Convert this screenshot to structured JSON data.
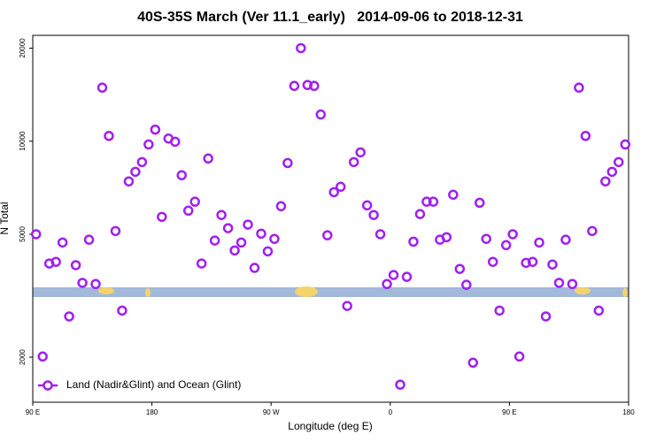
{
  "chart_data": {
    "type": "scatter",
    "title": "40S-35S March (Ver 11.1_early)   2014-09-06 to 2018-12-31",
    "x_label": "Longitude (deg E)",
    "y_label": "N Total",
    "log_y": true,
    "grid": false,
    "legend": "lower left",
    "xlim": [
      90,
      540
    ],
    "xticks": [
      {
        "value": 90,
        "label": "90 E"
      },
      180,
      {
        "value": 270,
        "label": "90 W"
      },
      {
        "value": 360,
        "label": "0"
      },
      {
        "value": 450,
        "label": "90 E"
      },
      {
        "value": 540,
        "label": "180"
      }
    ],
    "ylim": [
      1430,
      22000
    ],
    "yticks": [
      2000,
      5000,
      10000,
      20000
    ],
    "series": [
      {
        "name": "Land (Nadir&Glint) and Ocean (Glint)",
        "color": "#a020f0",
        "x": [
          92.5,
          97.5,
          102.5,
          107.5,
          112.5,
          117.5,
          122.5,
          127.5,
          132.5,
          137.5,
          142.5,
          147.5,
          152.5,
          157.5,
          162.5,
          167.5,
          172.5,
          177.5,
          182.5,
          187.5,
          192.5,
          197.5,
          202.5,
          207.5,
          212.5,
          217.5,
          222.5,
          227.5,
          232.5,
          237.5,
          242.5,
          247.5,
          252.5,
          257.5,
          262.5,
          267.5,
          272.5,
          277.5,
          282.5,
          287.5,
          292.5,
          297.5,
          302.5,
          307.5,
          312.5,
          317.5,
          322.5,
          327.5,
          332.5,
          337.5,
          342.5,
          347.5,
          352.5,
          357.5,
          362.5,
          367.5,
          372.5,
          377.5,
          382.5,
          387.5,
          392.5,
          397.5,
          402.5,
          407.5,
          412.5,
          417.5,
          422.5,
          427.5,
          432.5,
          437.5,
          442.5,
          447.5,
          452.5,
          457.5,
          462.5,
          467.5,
          472.5,
          477.5,
          482.5,
          487.5,
          492.5,
          497.5,
          502.5,
          507.5,
          512.5,
          517.5,
          522.5,
          527.5,
          532.5,
          537.5
        ],
        "values": [
          5000,
          2010,
          4020,
          4070,
          4700,
          2710,
          3970,
          3480,
          4800,
          3450,
          14900,
          10400,
          5120,
          2830,
          7410,
          7960,
          8560,
          9760,
          10900,
          5690,
          10200,
          9960,
          7760,
          5960,
          6370,
          4020,
          8790,
          4770,
          5770,
          5230,
          4430,
          4700,
          5370,
          3890,
          5020,
          4400,
          4830,
          6160,
          8500,
          15100,
          20000,
          15200,
          15100,
          12200,
          4960,
          6840,
          7120,
          2930,
          8560,
          9200,
          6200,
          5770,
          5000,
          3450,
          3690,
          1630,
          3640,
          4730,
          5810,
          6370,
          6370,
          4800,
          4890,
          6710,
          3860,
          3430,
          1920,
          6320,
          4830,
          4070,
          2830,
          4610,
          5000,
          2010,
          4040,
          4070,
          4700,
          2710,
          3990,
          3480,
          4800,
          3450,
          14900,
          10400,
          5120,
          2830,
          7410,
          7960,
          8560,
          9760
        ]
      }
    ]
  }
}
